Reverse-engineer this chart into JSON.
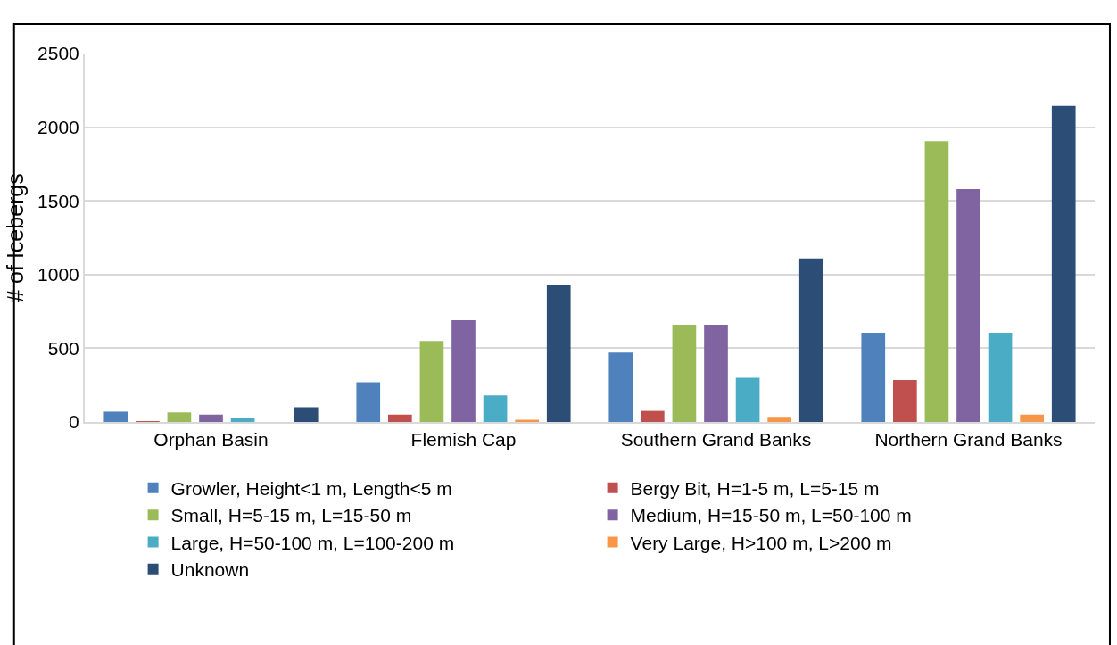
{
  "chart_data": {
    "type": "bar",
    "ylabel": "# of Icebergs",
    "categories": [
      "Orphan Basin",
      "Flemish Cap",
      "Southern Grand Banks",
      "Northern Grand Banks"
    ],
    "series": [
      {
        "name": "Growler, Height<1 m, Length<5 m",
        "color": "#4f81bd",
        "values": [
          70,
          270,
          470,
          605
        ]
      },
      {
        "name": "Bergy Bit, H=1-5 m, L=5-15 m",
        "color": "#c0504d",
        "values": [
          5,
          50,
          75,
          285
        ]
      },
      {
        "name": "Small, H=5-15 m, L=15-50 m",
        "color": "#9bbb59",
        "values": [
          65,
          550,
          660,
          1905
        ]
      },
      {
        "name": "Medium, H=15-50 m, L=50-100 m",
        "color": "#8064a2",
        "values": [
          50,
          690,
          660,
          1580
        ]
      },
      {
        "name": "Large, H=50-100 m, L=100-200 m",
        "color": "#4bacc6",
        "values": [
          25,
          180,
          300,
          605
        ]
      },
      {
        "name": "Very Large, H>100 m, L>200 m",
        "color": "#f79646",
        "values": [
          0,
          15,
          35,
          50
        ]
      },
      {
        "name": "Unknown",
        "color": "#2c4d75",
        "values": [
          100,
          930,
          1110,
          2145
        ]
      }
    ],
    "ylim": [
      0,
      2500
    ],
    "yticks": [
      0,
      500,
      1000,
      1500,
      2000,
      2500
    ],
    "grid": "y",
    "legend": "bottom"
  }
}
